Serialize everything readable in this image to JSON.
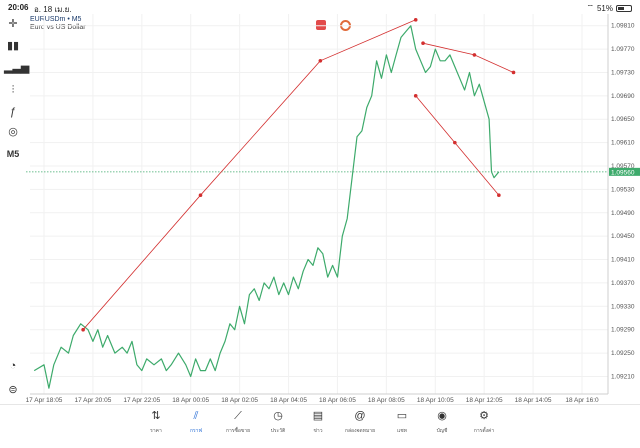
{
  "status_bar": {
    "time": "20:06",
    "date": "อ. 18 เม.ย.",
    "wifi_icon": "wifi-icon",
    "battery_text": "51%",
    "battery_level": 0.51
  },
  "header": {
    "symbol": "EURUSDm • M5",
    "description": "Euro vs US Dollar"
  },
  "toolbar": {
    "timeframe": "M5",
    "tools": [
      "crosshair-icon",
      "candles-icon",
      "bars-icon",
      "indicators-icon",
      "function-icon",
      "objects-icon"
    ]
  },
  "colors": {
    "line": "#3daa6b",
    "trend": "#d32f2f",
    "price_label_bg": "#3daa6b",
    "grid": "#f1f1f1",
    "active_nav": "#2a6fd6"
  },
  "chart_data": {
    "type": "line",
    "symbol": "EURUSDm",
    "timeframe": "M5",
    "title": "Euro vs US Dollar",
    "current_price": "1.09560",
    "ylim": [
      1.0918,
      1.0983
    ],
    "y_ticks": [
      "1.09810",
      "1.09770",
      "1.09730",
      "1.09690",
      "1.09650",
      "1.09610",
      "1.09570",
      "1.09530",
      "1.09490",
      "1.09450",
      "1.09410",
      "1.09370",
      "1.09330",
      "1.09290",
      "1.09250",
      "1.09210"
    ],
    "x_ticks": [
      "17 Apr 18:05",
      "17 Apr 20:05",
      "17 Apr 22:05",
      "18 Apr 00:05",
      "18 Apr 02:05",
      "18 Apr 04:05",
      "18 Apr 06:05",
      "18 Apr 08:05",
      "18 Apr 10:05",
      "18 Apr 12:05",
      "18 Apr 14:05",
      "18 Apr 16:0"
    ],
    "x_range": [
      0,
      11
    ],
    "series": [
      {
        "name": "EURUSDm close",
        "points": [
          [
            -0.2,
            1.0922
          ],
          [
            0.0,
            1.0923
          ],
          [
            0.1,
            1.0919
          ],
          [
            0.2,
            1.0923
          ],
          [
            0.35,
            1.0926
          ],
          [
            0.5,
            1.0925
          ],
          [
            0.6,
            1.0928
          ],
          [
            0.75,
            1.093
          ],
          [
            0.9,
            1.0929
          ],
          [
            1.0,
            1.0927
          ],
          [
            1.1,
            1.0929
          ],
          [
            1.2,
            1.0926
          ],
          [
            1.3,
            1.0928
          ],
          [
            1.45,
            1.0925
          ],
          [
            1.6,
            1.0926
          ],
          [
            1.7,
            1.0925
          ],
          [
            1.8,
            1.0927
          ],
          [
            1.9,
            1.0923
          ],
          [
            2.0,
            1.0922
          ],
          [
            2.1,
            1.0924
          ],
          [
            2.25,
            1.0923
          ],
          [
            2.4,
            1.0924
          ],
          [
            2.5,
            1.0922
          ],
          [
            2.6,
            1.0923
          ],
          [
            2.75,
            1.0925
          ],
          [
            2.9,
            1.0923
          ],
          [
            3.0,
            1.0921
          ],
          [
            3.1,
            1.0924
          ],
          [
            3.2,
            1.0922
          ],
          [
            3.3,
            1.0922
          ],
          [
            3.4,
            1.0924
          ],
          [
            3.5,
            1.0922
          ],
          [
            3.6,
            1.0925
          ],
          [
            3.7,
            1.0927
          ],
          [
            3.8,
            1.093
          ],
          [
            3.9,
            1.0929
          ],
          [
            4.0,
            1.0933
          ],
          [
            4.1,
            1.093
          ],
          [
            4.2,
            1.0935
          ],
          [
            4.3,
            1.0936
          ],
          [
            4.4,
            1.0934
          ],
          [
            4.5,
            1.0937
          ],
          [
            4.6,
            1.0936
          ],
          [
            4.7,
            1.0938
          ],
          [
            4.8,
            1.0935
          ],
          [
            4.9,
            1.0937
          ],
          [
            5.0,
            1.0935
          ],
          [
            5.1,
            1.0938
          ],
          [
            5.2,
            1.0936
          ],
          [
            5.3,
            1.0939
          ],
          [
            5.4,
            1.0941
          ],
          [
            5.5,
            1.094
          ],
          [
            5.6,
            1.0943
          ],
          [
            5.7,
            1.0942
          ],
          [
            5.8,
            1.0938
          ],
          [
            5.9,
            1.094
          ],
          [
            6.0,
            1.0938
          ],
          [
            6.1,
            1.0945
          ],
          [
            6.2,
            1.0948
          ],
          [
            6.3,
            1.0955
          ],
          [
            6.4,
            1.0962
          ],
          [
            6.5,
            1.0963
          ],
          [
            6.6,
            1.0967
          ],
          [
            6.7,
            1.0969
          ],
          [
            6.8,
            1.0975
          ],
          [
            6.9,
            1.0972
          ],
          [
            7.0,
            1.0976
          ],
          [
            7.1,
            1.0973
          ],
          [
            7.2,
            1.0976
          ],
          [
            7.3,
            1.0979
          ],
          [
            7.4,
            1.098
          ],
          [
            7.5,
            1.0981
          ],
          [
            7.6,
            1.0977
          ],
          [
            7.7,
            1.0975
          ],
          [
            7.8,
            1.0973
          ],
          [
            7.9,
            1.0974
          ],
          [
            8.0,
            1.0977
          ],
          [
            8.1,
            1.0975
          ],
          [
            8.2,
            1.0975
          ],
          [
            8.3,
            1.0976
          ],
          [
            8.4,
            1.0974
          ],
          [
            8.5,
            1.0972
          ],
          [
            8.6,
            1.097
          ],
          [
            8.7,
            1.0973
          ],
          [
            8.8,
            1.0969
          ],
          [
            8.9,
            1.0971
          ],
          [
            9.0,
            1.0968
          ],
          [
            9.1,
            1.0965
          ],
          [
            9.15,
            1.0956
          ],
          [
            9.2,
            1.0955
          ],
          [
            9.3,
            1.0956
          ]
        ]
      }
    ],
    "trendlines": [
      [
        [
          0.8,
          1.0929
        ],
        [
          3.2,
          1.0952
        ],
        [
          5.65,
          1.0975
        ],
        [
          7.6,
          1.0982
        ]
      ],
      [
        [
          7.6,
          1.0969
        ],
        [
          8.4,
          1.0961
        ],
        [
          9.3,
          1.0952
        ]
      ],
      [
        [
          7.75,
          1.0978
        ],
        [
          8.8,
          1.0976
        ],
        [
          9.6,
          1.0973
        ]
      ]
    ]
  },
  "bottom_nav": [
    {
      "icon": "quotes-icon",
      "label": "ราคา"
    },
    {
      "icon": "chart-icon",
      "label": "กราฟ",
      "active": true
    },
    {
      "icon": "trade-icon",
      "label": "การซื้อขาย"
    },
    {
      "icon": "history-icon",
      "label": "ประวัติ"
    },
    {
      "icon": "news-icon",
      "label": "ข่าว"
    },
    {
      "icon": "mailbox-icon",
      "label": "กล่องจดหมาย"
    },
    {
      "icon": "chat-icon",
      "label": "แชท"
    },
    {
      "icon": "account-icon",
      "label": "บัญชี"
    },
    {
      "icon": "settings-icon",
      "label": "การตั้งค่า"
    }
  ]
}
